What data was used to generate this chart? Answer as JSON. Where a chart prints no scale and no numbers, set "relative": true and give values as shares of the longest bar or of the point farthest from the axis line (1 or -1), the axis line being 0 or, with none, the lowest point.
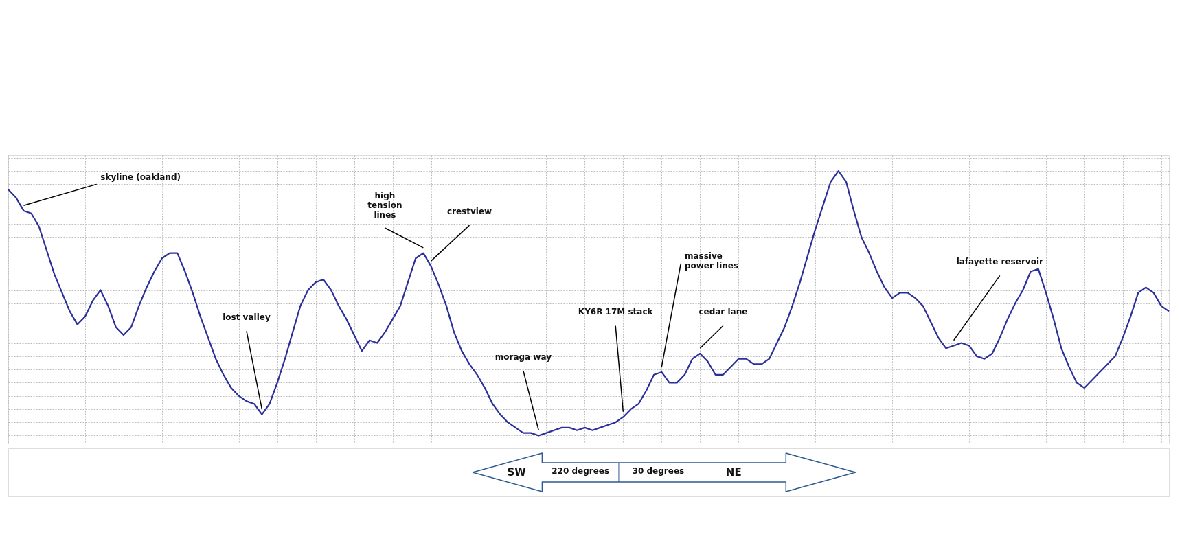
{
  "chart_data": {
    "type": "line",
    "relative": true,
    "grid": true,
    "marker": "none",
    "line_style": "solid",
    "tick_labels": false,
    "categories": [
      null,
      null,
      null,
      null,
      null,
      null,
      null,
      null,
      null,
      null,
      null,
      null,
      null,
      null,
      null,
      null,
      null,
      null,
      null,
      null,
      null,
      null,
      null,
      null,
      null,
      null,
      null,
      null,
      null,
      null,
      null,
      null,
      null,
      null,
      null,
      null,
      null,
      null,
      null,
      null,
      null,
      null,
      null,
      null,
      null,
      null,
      null,
      null,
      null,
      null,
      null,
      null,
      null,
      null,
      null,
      null,
      null,
      null,
      null,
      null,
      null,
      null,
      null,
      null,
      null,
      null,
      null,
      null,
      null,
      null,
      null,
      null,
      null,
      null,
      null,
      null,
      null,
      null,
      null,
      null,
      null,
      null,
      null,
      null,
      null,
      null,
      null,
      null,
      null,
      null,
      null,
      null,
      null,
      null,
      null,
      null,
      null,
      null,
      null,
      null,
      null,
      null,
      null,
      null,
      null,
      null,
      null,
      null,
      null,
      null,
      null,
      null,
      null,
      null,
      null,
      null,
      null,
      null,
      null,
      null,
      null,
      null,
      null,
      null,
      null,
      null,
      null,
      null,
      null,
      null,
      null,
      null,
      null,
      null,
      null,
      null,
      null,
      null,
      null,
      null,
      null,
      null,
      null,
      null,
      null,
      null,
      null,
      null,
      null,
      null,
      null,
      null
    ],
    "series": [
      {
        "color": "#2b2f9a",
        "values": [
          0.93,
          0.9,
          0.85,
          0.84,
          0.79,
          0.7,
          0.61,
          0.54,
          0.47,
          0.42,
          0.45,
          0.51,
          0.55,
          0.49,
          0.41,
          0.38,
          0.41,
          0.49,
          0.56,
          0.62,
          0.67,
          0.69,
          0.69,
          0.62,
          0.54,
          0.45,
          0.37,
          0.29,
          0.23,
          0.18,
          0.15,
          0.13,
          0.12,
          0.08,
          0.12,
          0.2,
          0.29,
          0.39,
          0.49,
          0.55,
          0.58,
          0.59,
          0.55,
          0.49,
          0.44,
          0.38,
          0.32,
          0.36,
          0.35,
          0.39,
          0.44,
          0.49,
          0.58,
          0.67,
          0.69,
          0.64,
          0.57,
          0.49,
          0.39,
          0.32,
          0.27,
          0.23,
          0.18,
          0.12,
          0.08,
          0.05,
          0.03,
          0.01,
          0.01,
          0,
          0.01,
          0.02,
          0.03,
          0.03,
          0.02,
          0.03,
          0.02,
          0.03,
          0.04,
          0.05,
          0.07,
          0.1,
          0.12,
          0.17,
          0.23,
          0.24,
          0.2,
          0.2,
          0.23,
          0.29,
          0.31,
          0.28,
          0.23,
          0.23,
          0.26,
          0.29,
          0.29,
          0.27,
          0.27,
          0.29,
          0.35,
          0.41,
          0.49,
          0.58,
          0.68,
          0.78,
          0.87,
          0.96,
          1,
          0.96,
          0.85,
          0.75,
          0.69,
          0.62,
          0.56,
          0.52,
          0.54,
          0.54,
          0.52,
          0.49,
          0.43,
          0.37,
          0.33,
          0.34,
          0.35,
          0.34,
          0.3,
          0.29,
          0.31,
          0.37,
          0.44,
          0.5,
          0.55,
          0.62,
          0.63,
          0.54,
          0.44,
          0.33,
          0.26,
          0.2,
          0.18,
          0.21,
          0.24,
          0.27,
          0.3,
          0.37,
          0.45,
          0.54,
          0.56,
          0.54,
          0.49,
          0.47
        ]
      }
    ],
    "annotations": [
      "skyline (oakland)",
      "lost valley",
      "high\ntension\nlines",
      "crestview",
      "moraga way",
      "KY6R 17M stack",
      "massive\npower lines",
      "cedar lane",
      "lafayette reservoir",
      "SW",
      "220 degrees",
      "30 degrees",
      "NE"
    ]
  }
}
